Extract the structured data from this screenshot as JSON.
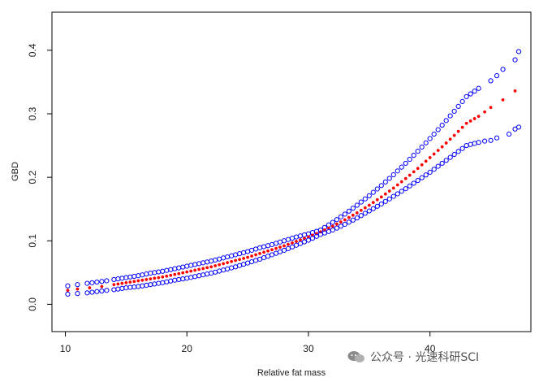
{
  "chart_data": {
    "type": "scatter",
    "title": "",
    "xlabel": "Relative fat mass",
    "ylabel": "GBD",
    "xlim": [
      8.9,
      48.3
    ],
    "ylim": [
      -0.043,
      0.46
    ],
    "xticks": [
      10,
      20,
      30,
      40
    ],
    "yticks": [
      0.0,
      0.1,
      0.2,
      0.3,
      0.4
    ],
    "ytick_labels": [
      "0.0",
      "0.1",
      "0.2",
      "0.3",
      "0.4"
    ],
    "series": [
      {
        "role": "upper-bound",
        "marker": "open-circle",
        "color": "#0000ff",
        "x": [
          10.2,
          11.0,
          11.8,
          12.2,
          12.6,
          13.0,
          13.4,
          14.0,
          15,
          16,
          17,
          18,
          19,
          20,
          21,
          22,
          23,
          24,
          25,
          26,
          27,
          28,
          29,
          30,
          31,
          32,
          33,
          34,
          35,
          36,
          37,
          38,
          39,
          40,
          41,
          42,
          43,
          44,
          45,
          45.5,
          46.0,
          47.0,
          47.3
        ],
        "y": [
          0.029,
          0.031,
          0.033,
          0.034,
          0.035,
          0.036,
          0.037,
          0.039,
          0.042,
          0.045,
          0.049,
          0.052,
          0.056,
          0.06,
          0.064,
          0.068,
          0.073,
          0.078,
          0.083,
          0.089,
          0.094,
          0.1,
          0.106,
          0.111,
          0.117,
          0.129,
          0.142,
          0.156,
          0.171,
          0.187,
          0.204,
          0.222,
          0.241,
          0.261,
          0.282,
          0.304,
          0.327,
          0.34,
          0.352,
          0.36,
          0.37,
          0.385,
          0.398
        ]
      },
      {
        "role": "estimate",
        "marker": "filled-dot",
        "color": "#ff0000",
        "x": [
          10.2,
          11.0,
          12.0,
          13.0,
          14.0,
          15,
          16,
          17,
          18,
          19,
          20,
          21,
          22,
          23,
          24,
          25,
          26,
          27,
          28,
          29,
          30,
          31,
          32,
          33,
          34,
          35,
          36,
          37,
          38,
          39,
          40,
          41,
          42,
          43,
          44,
          44.5,
          45.0,
          46.0,
          47.0
        ],
        "y": [
          0.022,
          0.024,
          0.026,
          0.028,
          0.031,
          0.034,
          0.037,
          0.04,
          0.043,
          0.047,
          0.051,
          0.055,
          0.059,
          0.064,
          0.069,
          0.074,
          0.08,
          0.086,
          0.092,
          0.099,
          0.106,
          0.114,
          0.123,
          0.133,
          0.144,
          0.156,
          0.169,
          0.183,
          0.198,
          0.214,
          0.231,
          0.248,
          0.266,
          0.285,
          0.296,
          0.303,
          0.31,
          0.322,
          0.336
        ]
      },
      {
        "role": "lower-bound",
        "marker": "open-circle",
        "color": "#0000ff",
        "x": [
          10.2,
          11.0,
          11.8,
          12.2,
          12.6,
          13.0,
          13.4,
          14.0,
          15,
          16,
          17,
          18,
          19,
          20,
          21,
          22,
          23,
          24,
          25,
          26,
          27,
          28,
          29,
          30,
          31,
          32,
          33,
          34,
          35,
          36,
          37,
          38,
          39,
          40,
          41,
          42,
          43,
          44,
          44.5,
          45.0,
          45.5,
          46.5,
          47.0,
          47.3
        ],
        "y": [
          0.016,
          0.017,
          0.018,
          0.019,
          0.02,
          0.021,
          0.022,
          0.023,
          0.026,
          0.028,
          0.031,
          0.034,
          0.038,
          0.041,
          0.045,
          0.049,
          0.054,
          0.059,
          0.065,
          0.071,
          0.078,
          0.085,
          0.093,
          0.101,
          0.11,
          0.117,
          0.126,
          0.136,
          0.147,
          0.158,
          0.17,
          0.182,
          0.195,
          0.208,
          0.222,
          0.236,
          0.25,
          0.255,
          0.257,
          0.258,
          0.262,
          0.268,
          0.276,
          0.279
        ]
      }
    ]
  },
  "watermark": {
    "text": "公众号 · 光速科研SCI"
  }
}
